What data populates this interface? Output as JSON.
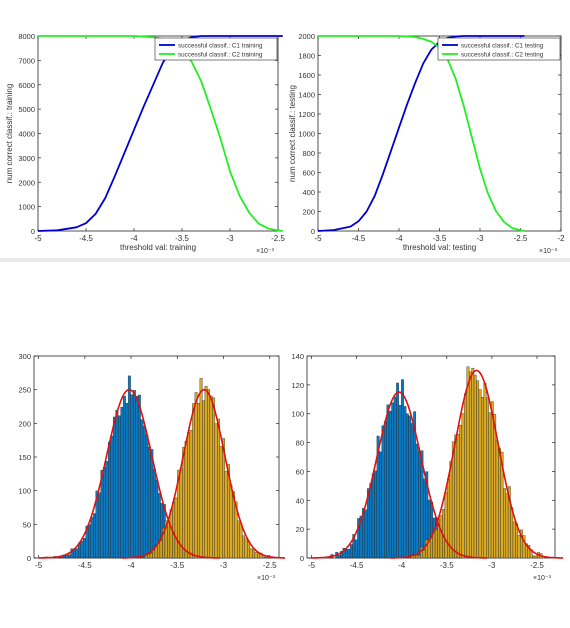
{
  "chart_data": [
    {
      "type": "line",
      "xlabel": "threshold val: training",
      "ylabel": "num correct classif.: training",
      "x_exponent": "×10⁻³",
      "xlim": [
        -5,
        -2.5
      ],
      "ylim": [
        0,
        8000
      ],
      "xticks": [
        "-5",
        "-4.5",
        "-4",
        "-3.5",
        "-3",
        "-2.5"
      ],
      "yticks": [
        "0",
        "1000",
        "2000",
        "3000",
        "4000",
        "5000",
        "6000",
        "7000",
        "8000"
      ],
      "grid": false,
      "legend_position": "top-right",
      "series": [
        {
          "name": "successful classif.: C1 training",
          "color": "#0000cc",
          "x": [
            -5,
            -4.8,
            -4.6,
            -4.5,
            -4.4,
            -4.3,
            -4.2,
            -4.1,
            -4.0,
            -3.9,
            -3.8,
            -3.7,
            -3.6,
            -3.5,
            -3.4,
            -3.3,
            -3.2,
            -3.1,
            -3.0,
            -2.8,
            -2.6,
            -2.45
          ],
          "y": [
            0,
            30,
            150,
            320,
            700,
            1350,
            2250,
            3200,
            4150,
            5100,
            6000,
            6900,
            7500,
            7800,
            7950,
            8000,
            8000,
            8000,
            8000,
            8000,
            8000,
            8000
          ]
        },
        {
          "name": "successful classif.: C2 training",
          "color": "#22ee22",
          "x": [
            -5,
            -4.5,
            -4.0,
            -3.8,
            -3.7,
            -3.6,
            -3.5,
            -3.4,
            -3.3,
            -3.2,
            -3.1,
            -3.0,
            -2.9,
            -2.8,
            -2.7,
            -2.6,
            -2.5,
            -2.45
          ],
          "y": [
            8000,
            8000,
            8000,
            7950,
            7880,
            7720,
            7450,
            6950,
            6150,
            5000,
            3800,
            2450,
            1450,
            750,
            300,
            100,
            20,
            0
          ]
        }
      ]
    },
    {
      "type": "line",
      "xlabel": "threshold val: testing",
      "ylabel": "num correct classif.: testing",
      "x_exponent": "×10⁻³",
      "xlim": [
        -5,
        -2
      ],
      "ylim": [
        0,
        2000
      ],
      "xticks": [
        "-5",
        "-4.5",
        "-4",
        "-3.5",
        "-3",
        "-2.5",
        "-2"
      ],
      "yticks": [
        "0",
        "200",
        "400",
        "600",
        "800",
        "1000",
        "1200",
        "1400",
        "1600",
        "1800",
        "2000"
      ],
      "grid": false,
      "legend_position": "top-right",
      "series": [
        {
          "name": "successful classif.: C1 testing",
          "color": "#0000cc",
          "x": [
            -5,
            -4.8,
            -4.6,
            -4.5,
            -4.4,
            -4.3,
            -4.2,
            -4.1,
            -4.0,
            -3.9,
            -3.8,
            -3.7,
            -3.6,
            -3.5,
            -3.4,
            -3.3,
            -3.2,
            -3.0,
            -2.8,
            -2.6,
            -2.45
          ],
          "y": [
            0,
            10,
            45,
            100,
            200,
            360,
            580,
            820,
            1060,
            1300,
            1520,
            1720,
            1860,
            1940,
            1980,
            1995,
            2000,
            2000,
            2000,
            2000,
            2000
          ]
        },
        {
          "name": "successful classif.: C2 testing",
          "color": "#22ee22",
          "x": [
            -5,
            -4.5,
            -4.0,
            -3.8,
            -3.7,
            -3.6,
            -3.5,
            -3.4,
            -3.3,
            -3.2,
            -3.1,
            -3.0,
            -2.9,
            -2.8,
            -2.7,
            -2.6,
            -2.5,
            -2.45
          ],
          "y": [
            2000,
            2000,
            2000,
            1990,
            1970,
            1940,
            1880,
            1760,
            1560,
            1280,
            960,
            640,
            380,
            200,
            90,
            30,
            8,
            0
          ]
        }
      ]
    },
    {
      "type": "bar",
      "subtype": "histogram with fitted normal curves",
      "x_exponent": "×10⁻³",
      "xlim": [
        -5.05,
        -2.4
      ],
      "ylim": [
        0,
        300
      ],
      "xticks": [
        "-5",
        "-4.5",
        "-4",
        "-3.5",
        "-3",
        "-2.5"
      ],
      "yticks": [
        "0",
        "50",
        "100",
        "150",
        "200",
        "250",
        "300"
      ],
      "series": [
        {
          "color": "#0072bd",
          "fit_color": "#e01010",
          "mean": -4.02,
          "std": 0.245,
          "peak": 250,
          "range": [
            -4.95,
            -3.35
          ]
        },
        {
          "color": "#d6a51c",
          "fit_color": "#e01010",
          "mean": -3.21,
          "std": 0.225,
          "peak": 250,
          "range": [
            -3.85,
            -2.5
          ]
        }
      ]
    },
    {
      "type": "bar",
      "subtype": "histogram with fitted normal curves",
      "x_exponent": "×10⁻³",
      "xlim": [
        -5.05,
        -2.3
      ],
      "ylim": [
        0,
        140
      ],
      "xticks": [
        "-5",
        "-4.5",
        "-4",
        "-3.5",
        "-3",
        "-2.5"
      ],
      "yticks": [
        "0",
        "20",
        "40",
        "60",
        "80",
        "100",
        "120",
        "140"
      ],
      "series": [
        {
          "color": "#0072bd",
          "fit_color": "#e01010",
          "mean": -4.03,
          "std": 0.245,
          "peak": 115,
          "range": [
            -4.95,
            -3.35
          ]
        },
        {
          "color": "#d6a51c",
          "fit_color": "#e01010",
          "mean": -3.17,
          "std": 0.24,
          "peak": 130,
          "range": [
            -3.9,
            -2.45
          ]
        }
      ]
    }
  ]
}
